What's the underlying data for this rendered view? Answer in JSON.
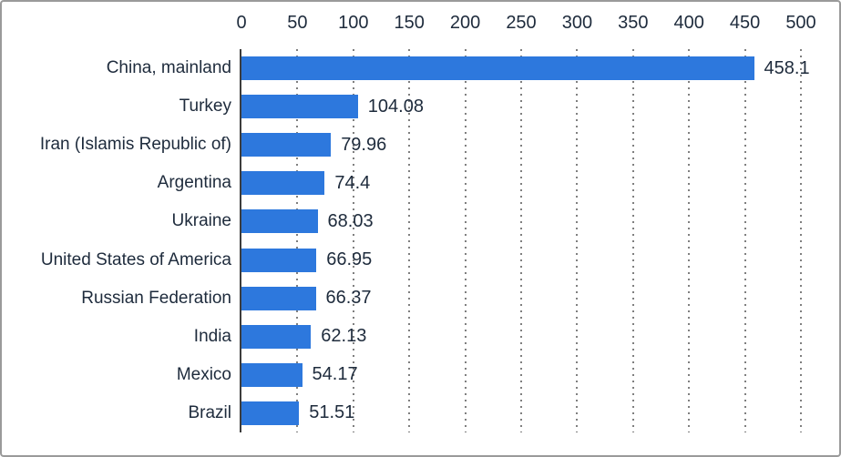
{
  "chart_data": {
    "type": "bar",
    "orientation": "horizontal",
    "title": "",
    "xlabel": "",
    "ylabel": "",
    "axis_labels_position": "top",
    "xlim": [
      0,
      500
    ],
    "x_ticks": [
      "0",
      "50",
      "100",
      "150",
      "200",
      "250",
      "300",
      "350",
      "400",
      "450",
      "500"
    ],
    "x_tick_values": [
      0,
      50,
      100,
      150,
      200,
      250,
      300,
      350,
      400,
      450,
      500
    ],
    "grid": "vertical-dotted",
    "legend": "none",
    "categories": [
      "China, mainland",
      "Turkey",
      "Iran (Islamis Republic of)",
      "Argentina",
      "Ukraine",
      "United States of America",
      "Russian Federation",
      "India",
      "Mexico",
      "Brazil"
    ],
    "values": [
      458.1,
      104.08,
      79.96,
      74.4,
      68.03,
      66.95,
      66.37,
      62.13,
      54.17,
      51.51
    ],
    "value_labels": [
      "458.1",
      "104.08",
      "79.96",
      "74.4",
      "68.03",
      "66.95",
      "66.37",
      "62.13",
      "54.17",
      "51.51"
    ],
    "colors": {
      "bar": "#2d78dd",
      "text": "#1e2b3c",
      "axis_line": "#3d3d3d",
      "gridline": "#7f7f7f",
      "border": "#9a9a9a",
      "background": "#ffffff"
    }
  }
}
